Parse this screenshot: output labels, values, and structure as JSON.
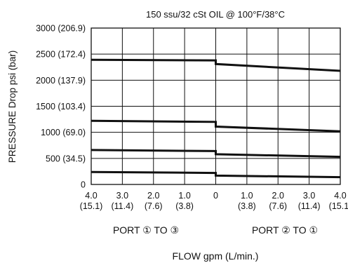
{
  "chart_data": {
    "type": "line",
    "title": "150 ssu/32 cSt OIL @ 100°F/38°C",
    "ylabel": "PRESSURE Drop psi (bar)",
    "xlabel": "FLOW gpm (L/min.)",
    "ylim": [
      0,
      3000
    ],
    "grid": true,
    "y_ticks": [
      {
        "value": 0,
        "label": "0"
      },
      {
        "value": 500,
        "label": "500 (34.5)"
      },
      {
        "value": 1000,
        "label": "1000 (69.0)"
      },
      {
        "value": 1500,
        "label": "1500 (103.4)"
      },
      {
        "value": 2000,
        "label": "2000 (137.9)"
      },
      {
        "value": 2500,
        "label": "2500 (172.4)"
      },
      {
        "value": 3000,
        "label": "3000 (206.9)"
      }
    ],
    "x_ticks": [
      {
        "value": -4,
        "gpm": "4.0",
        "lpm": "(15.1)"
      },
      {
        "value": -3,
        "gpm": "3.0",
        "lpm": "(11.4)"
      },
      {
        "value": -2,
        "gpm": "2.0",
        "lpm": "(7.6)"
      },
      {
        "value": -1,
        "gpm": "1.0",
        "lpm": "(3.8)"
      },
      {
        "value": 0,
        "gpm": "0",
        "lpm": ""
      },
      {
        "value": 1,
        "gpm": "1.0",
        "lpm": "(3.8)"
      },
      {
        "value": 2,
        "gpm": "2.0",
        "lpm": "(7.6)"
      },
      {
        "value": 3,
        "gpm": "3.0",
        "lpm": "(11.4)"
      },
      {
        "value": 4,
        "gpm": "4.0",
        "lpm": "(15.1)"
      }
    ],
    "section_labels": {
      "left": "PORT ① TO ③",
      "right": "PORT ② TO ①"
    },
    "xlim": [
      -4,
      4
    ],
    "series": [
      {
        "points": [
          [
            -4,
            2390
          ],
          [
            0,
            2380
          ],
          [
            0,
            2310
          ],
          [
            4,
            2180
          ]
        ]
      },
      {
        "points": [
          [
            -4,
            1220
          ],
          [
            0,
            1200
          ],
          [
            0,
            1110
          ],
          [
            4,
            1020
          ]
        ]
      },
      {
        "points": [
          [
            -4,
            660
          ],
          [
            0,
            640
          ],
          [
            0,
            580
          ],
          [
            4,
            530
          ]
        ]
      },
      {
        "points": [
          [
            -4,
            240
          ],
          [
            0,
            220
          ],
          [
            0,
            170
          ],
          [
            4,
            140
          ]
        ]
      }
    ]
  }
}
